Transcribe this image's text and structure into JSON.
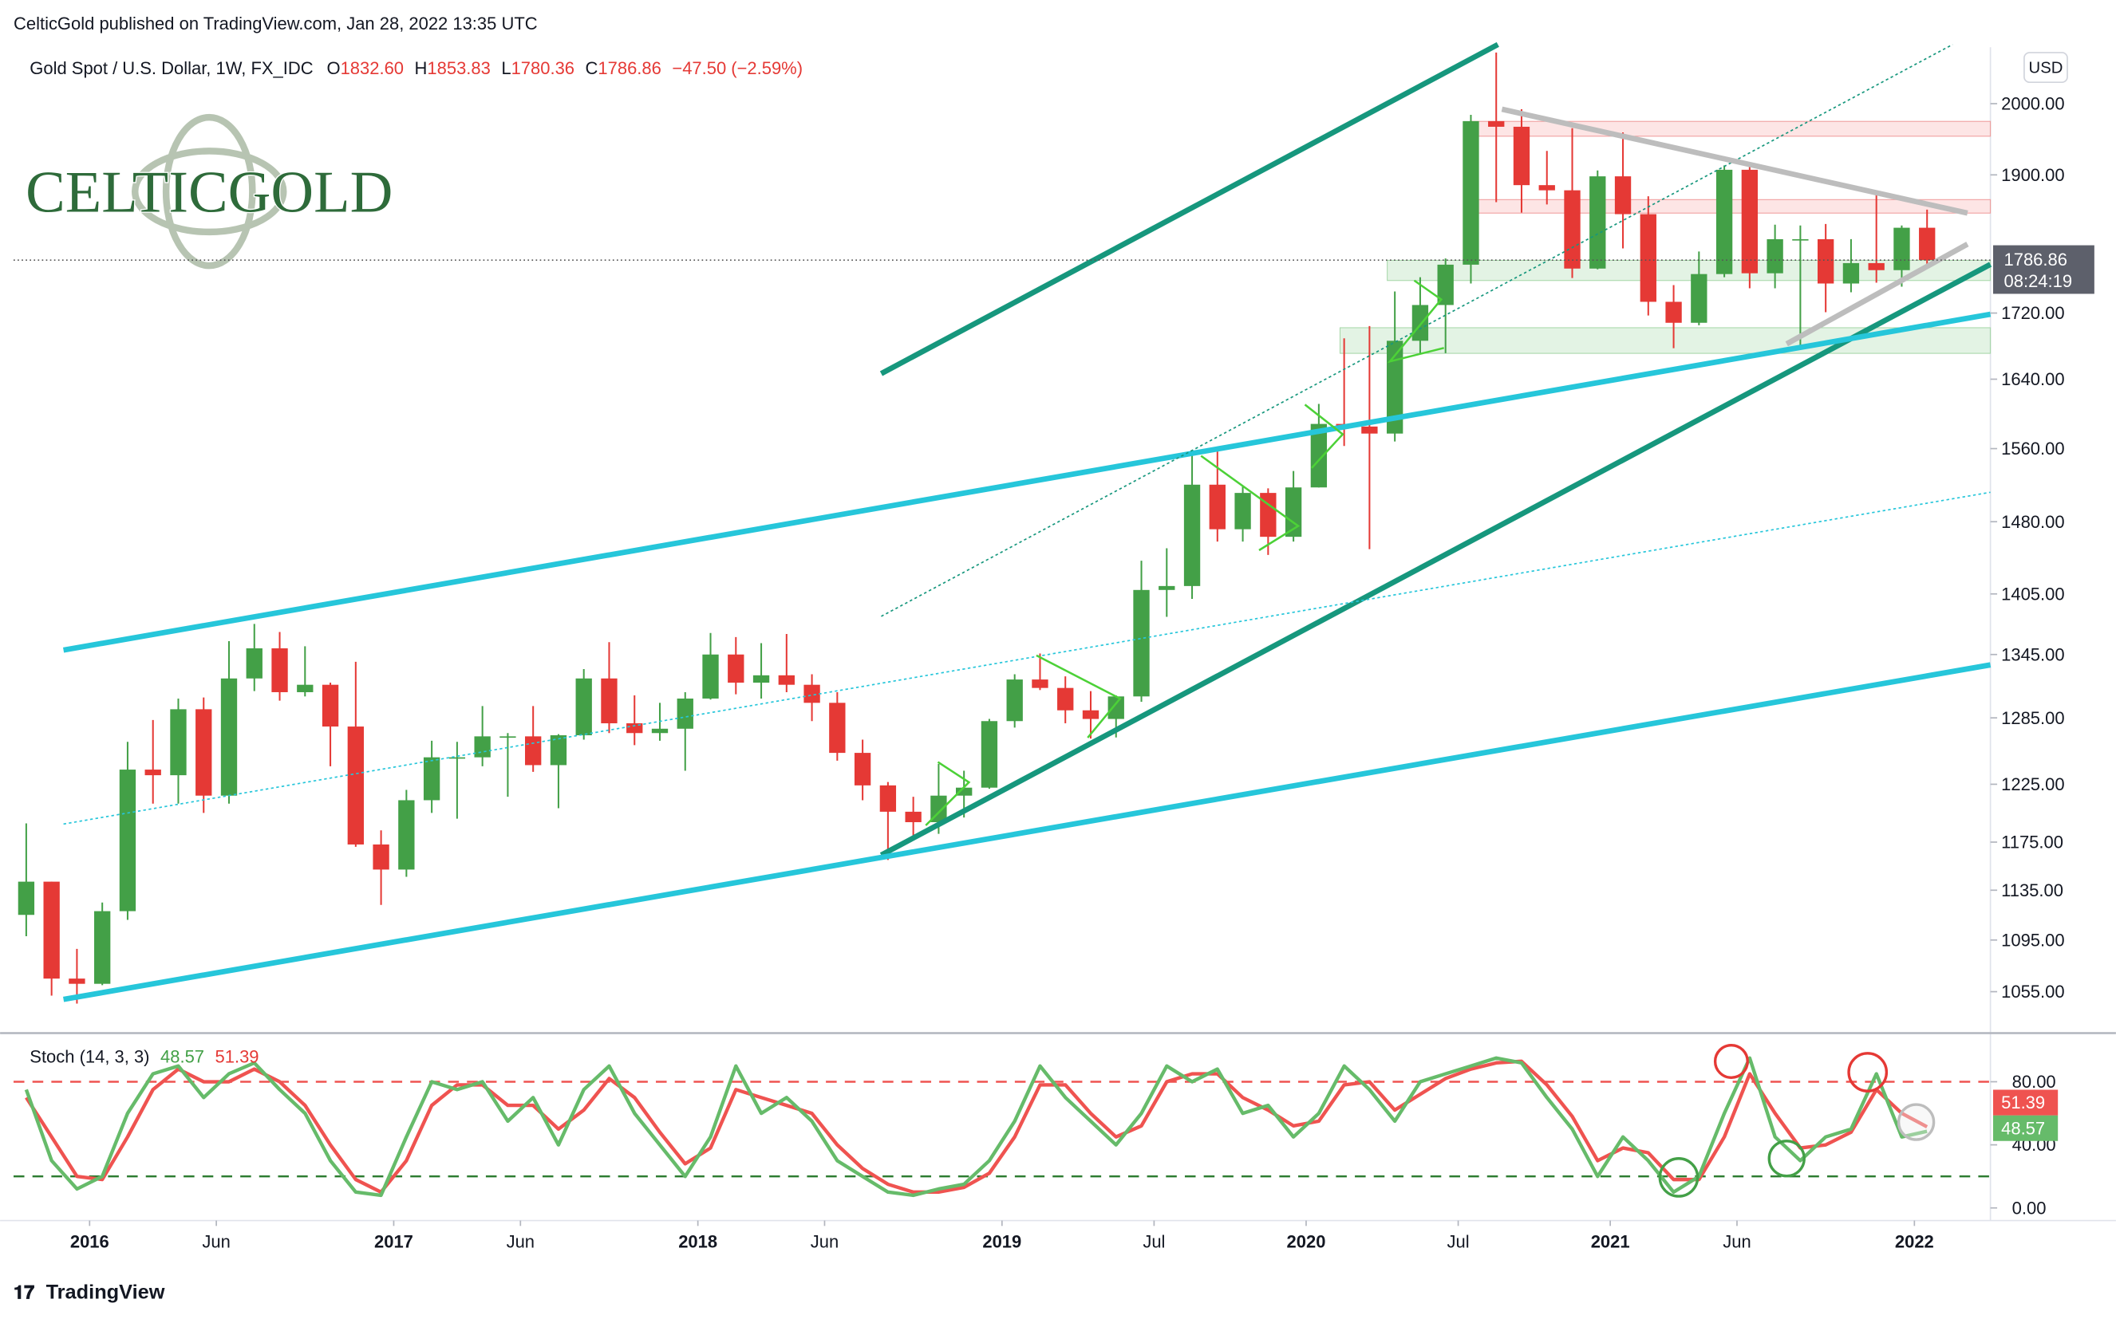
{
  "header": {
    "publisher": "CelticGold published on TradingView.com, Jan 28, 2022 13:35 UTC",
    "logo": "CELTICGOLD",
    "footer": "TradingView"
  },
  "chart_data": [
    {
      "type": "candlestick",
      "title": "Gold Spot / U.S. Dollar, 1W, FX_IDC",
      "ohlc": [
        {
          "key": "O",
          "value": "1832.60"
        },
        {
          "key": "H",
          "value": "1853.83"
        },
        {
          "key": "L",
          "value": "1780.36"
        },
        {
          "key": "C",
          "value": "1786.86"
        }
      ],
      "change": "−47.50 (−2.59%)",
      "currency": "USD",
      "last_price": 1786.86,
      "countdown": "08:24:19",
      "up_color": "#43a047",
      "down_color": "#e53935",
      "log_scale": true,
      "x": [
        "2015-10",
        "2015-11",
        "2015-12",
        "2016-01",
        "2016-02",
        "2016-03",
        "2016-04",
        "2016-05",
        "2016-06",
        "2016-07",
        "2016-08",
        "2016-09",
        "2016-10",
        "2016-11",
        "2016-12",
        "2017-01",
        "2017-02",
        "2017-03",
        "2017-04",
        "2017-05",
        "2017-06",
        "2017-07",
        "2017-08",
        "2017-09",
        "2017-10",
        "2017-11",
        "2017-12",
        "2018-01",
        "2018-02",
        "2018-03",
        "2018-04",
        "2018-05",
        "2018-06",
        "2018-07",
        "2018-08",
        "2018-09",
        "2018-10",
        "2018-11",
        "2018-12",
        "2019-01",
        "2019-02",
        "2019-03",
        "2019-04",
        "2019-05",
        "2019-06",
        "2019-07",
        "2019-08",
        "2019-09",
        "2019-10",
        "2019-11",
        "2019-12",
        "2020-01",
        "2020-02",
        "2020-03",
        "2020-04",
        "2020-05",
        "2020-06",
        "2020-07",
        "2020-08",
        "2020-09",
        "2020-10",
        "2020-11",
        "2020-12",
        "2021-01",
        "2021-02",
        "2021-03",
        "2021-04",
        "2021-05",
        "2021-06",
        "2021-07",
        "2021-08",
        "2021-09",
        "2021-10",
        "2021-11",
        "2021-12",
        "2022-01"
      ],
      "open": [
        1115,
        1142,
        1065,
        1061,
        1118,
        1238,
        1233,
        1293,
        1215,
        1322,
        1351,
        1309,
        1316,
        1277,
        1173,
        1152,
        1211,
        1249,
        1249,
        1268,
        1268,
        1242,
        1269,
        1322,
        1280,
        1271,
        1275,
        1303,
        1345,
        1318,
        1325,
        1316,
        1299,
        1253,
        1224,
        1201,
        1192,
        1215,
        1222,
        1282,
        1321,
        1313,
        1292,
        1284,
        1305,
        1409,
        1413,
        1520,
        1472,
        1511,
        1464,
        1517,
        1588,
        1585,
        1577,
        1686,
        1730,
        1781,
        1975,
        1967,
        1886,
        1879,
        1776,
        1898,
        1847,
        1734,
        1708,
        1769,
        1907,
        1770,
        1814,
        1814,
        1757,
        1783,
        1774,
        1829
      ],
      "high": [
        1191,
        1142,
        1088,
        1125,
        1263,
        1283,
        1303,
        1304,
        1358,
        1375,
        1367,
        1353,
        1318,
        1338,
        1185,
        1220,
        1264,
        1263,
        1296,
        1271,
        1296,
        1270,
        1331,
        1357,
        1306,
        1299,
        1309,
        1366,
        1362,
        1356,
        1365,
        1326,
        1309,
        1265,
        1227,
        1214,
        1243,
        1237,
        1284,
        1326,
        1346,
        1324,
        1310,
        1306,
        1439,
        1452,
        1555,
        1557,
        1518,
        1516,
        1535,
        1611,
        1689,
        1704,
        1747,
        1765,
        1789,
        1984,
        2075,
        1992,
        1933,
        1965,
        1906,
        1959,
        1871,
        1755,
        1798,
        1913,
        1917,
        1833,
        1832,
        1834,
        1814,
        1877,
        1832,
        1853
      ],
      "low": [
        1098,
        1052,
        1046,
        1060,
        1111,
        1208,
        1208,
        1200,
        1208,
        1310,
        1301,
        1305,
        1241,
        1171,
        1123,
        1146,
        1200,
        1195,
        1241,
        1214,
        1236,
        1204,
        1265,
        1271,
        1260,
        1264,
        1237,
        1302,
        1307,
        1303,
        1309,
        1282,
        1246,
        1211,
        1160,
        1180,
        1182,
        1196,
        1221,
        1276,
        1311,
        1280,
        1266,
        1267,
        1300,
        1382,
        1400,
        1459,
        1459,
        1445,
        1459,
        1517,
        1563,
        1451,
        1568,
        1670,
        1671,
        1757,
        1863,
        1849,
        1860,
        1764,
        1775,
        1802,
        1717,
        1677,
        1705,
        1765,
        1751,
        1751,
        1681,
        1721,
        1746,
        1758,
        1753,
        1780
      ],
      "close": [
        1142,
        1065,
        1061,
        1118,
        1238,
        1233,
        1293,
        1215,
        1322,
        1351,
        1309,
        1316,
        1277,
        1173,
        1152,
        1211,
        1249,
        1249,
        1268,
        1268,
        1242,
        1269,
        1322,
        1280,
        1271,
        1275,
        1303,
        1345,
        1318,
        1325,
        1316,
        1299,
        1253,
        1224,
        1201,
        1192,
        1215,
        1222,
        1282,
        1321,
        1313,
        1292,
        1284,
        1305,
        1409,
        1413,
        1520,
        1472,
        1511,
        1464,
        1517,
        1588,
        1585,
        1577,
        1686,
        1730,
        1781,
        1975,
        1967,
        1886,
        1879,
        1776,
        1898,
        1847,
        1734,
        1708,
        1769,
        1907,
        1770,
        1814,
        1814,
        1757,
        1783,
        1774,
        1829,
        1787
      ],
      "xlim": [
        "2015-10",
        "2022-04"
      ],
      "xticks": [
        {
          "value": "2016-01",
          "label": "2016"
        },
        {
          "value": "2016-06",
          "label": "Jun"
        },
        {
          "value": "2017-01",
          "label": "2017"
        },
        {
          "value": "2017-06",
          "label": "Jun"
        },
        {
          "value": "2018-01",
          "label": "2018"
        },
        {
          "value": "2018-06",
          "label": "Jun"
        },
        {
          "value": "2019-01",
          "label": "2019"
        },
        {
          "value": "2019-07",
          "label": "Jul"
        },
        {
          "value": "2020-01",
          "label": "2020"
        },
        {
          "value": "2020-07",
          "label": "Jul"
        },
        {
          "value": "2021-01",
          "label": "2021"
        },
        {
          "value": "2021-06",
          "label": "Jun"
        },
        {
          "value": "2022-01",
          "label": "2022"
        }
      ],
      "ylim": [
        1025,
        2083
      ],
      "yticks": [
        {
          "value": 1055,
          "label": "1055.00"
        },
        {
          "value": 1095,
          "label": "1095.00"
        },
        {
          "value": 1135,
          "label": "1135.00"
        },
        {
          "value": 1175,
          "label": "1175.00"
        },
        {
          "value": 1225,
          "label": "1225.00"
        },
        {
          "value": 1285,
          "label": "1285.00"
        },
        {
          "value": 1345,
          "label": "1345.00"
        },
        {
          "value": 1405,
          "label": "1405.00"
        },
        {
          "value": 1480,
          "label": "1480.00"
        },
        {
          "value": 1560,
          "label": "1560.00"
        },
        {
          "value": 1640,
          "label": "1640.00"
        },
        {
          "value": 1720,
          "label": "1720.00"
        },
        {
          "value": 1900,
          "label": "1900.00"
        },
        {
          "value": 2000,
          "label": "2000.00"
        }
      ]
    },
    {
      "type": "line",
      "title": "Stoch (14, 3, 3)",
      "x": [
        "2015-10",
        "2015-11",
        "2015-12",
        "2016-01",
        "2016-02",
        "2016-03",
        "2016-04",
        "2016-05",
        "2016-06",
        "2016-07",
        "2016-08",
        "2016-09",
        "2016-10",
        "2016-11",
        "2016-12",
        "2017-01",
        "2017-02",
        "2017-03",
        "2017-04",
        "2017-05",
        "2017-06",
        "2017-07",
        "2017-08",
        "2017-09",
        "2017-10",
        "2017-11",
        "2017-12",
        "2018-01",
        "2018-02",
        "2018-03",
        "2018-04",
        "2018-05",
        "2018-06",
        "2018-07",
        "2018-08",
        "2018-09",
        "2018-10",
        "2018-11",
        "2018-12",
        "2019-01",
        "2019-02",
        "2019-03",
        "2019-04",
        "2019-05",
        "2019-06",
        "2019-07",
        "2019-08",
        "2019-09",
        "2019-10",
        "2019-11",
        "2019-12",
        "2020-01",
        "2020-02",
        "2020-03",
        "2020-04",
        "2020-05",
        "2020-06",
        "2020-07",
        "2020-08",
        "2020-09",
        "2020-10",
        "2020-11",
        "2020-12",
        "2021-01",
        "2021-02",
        "2021-03",
        "2021-04",
        "2021-05",
        "2021-06",
        "2021-07",
        "2021-08",
        "2021-09",
        "2021-10",
        "2021-11",
        "2021-12",
        "2022-01"
      ],
      "series": [
        {
          "name": "%K",
          "color": "#66bb6a",
          "values": [
            75,
            30,
            12,
            20,
            60,
            85,
            90,
            70,
            85,
            92,
            75,
            60,
            30,
            10,
            8,
            45,
            80,
            75,
            80,
            55,
            70,
            40,
            75,
            90,
            60,
            40,
            20,
            45,
            90,
            60,
            70,
            55,
            30,
            20,
            10,
            8,
            12,
            15,
            30,
            55,
            90,
            70,
            55,
            40,
            60,
            90,
            80,
            88,
            60,
            65,
            45,
            60,
            90,
            75,
            55,
            80,
            85,
            90,
            95,
            92,
            70,
            50,
            20,
            45,
            30,
            10,
            20,
            60,
            95,
            45,
            30,
            45,
            50,
            85,
            45,
            48.57
          ]
        },
        {
          "name": "%D",
          "color": "#ef5350",
          "values": [
            70,
            45,
            20,
            18,
            45,
            75,
            88,
            80,
            80,
            88,
            80,
            65,
            40,
            18,
            10,
            30,
            65,
            78,
            78,
            65,
            65,
            50,
            62,
            82,
            70,
            48,
            28,
            38,
            75,
            70,
            65,
            60,
            40,
            25,
            15,
            10,
            10,
            13,
            22,
            45,
            78,
            78,
            60,
            45,
            52,
            80,
            85,
            85,
            70,
            62,
            52,
            55,
            78,
            80,
            62,
            72,
            82,
            88,
            92,
            93,
            78,
            58,
            30,
            38,
            35,
            18,
            18,
            45,
            85,
            60,
            38,
            40,
            48,
            75,
            60,
            51.39
          ]
        }
      ],
      "bands": [
        {
          "value": 80,
          "color": "#ef5350"
        },
        {
          "value": 20,
          "color": "#2e7d32"
        }
      ],
      "ylim": [
        -8,
        110
      ],
      "yticks": [
        {
          "value": 0,
          "label": "0.00"
        },
        {
          "value": 40,
          "label": "40.00"
        },
        {
          "value": 80,
          "label": "80.00"
        }
      ]
    }
  ]
}
